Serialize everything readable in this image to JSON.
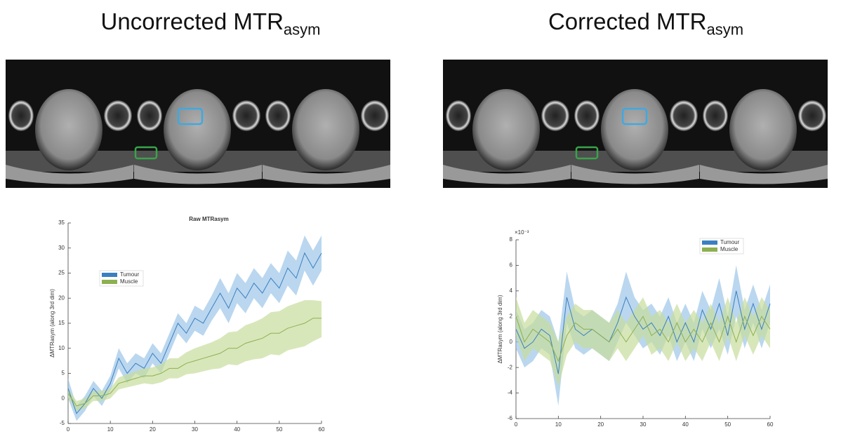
{
  "headings": [
    {
      "text": "Uncorrected MTR",
      "subscript": "asym"
    },
    {
      "text": "Corrected MTR",
      "subscript": "asym"
    }
  ],
  "chart_data": [
    {
      "type": "line",
      "title": "Raw MTRasym",
      "ylabel": "ΔMTRasym (along 3rd dim)",
      "x": [
        0,
        2,
        4,
        6,
        8,
        10,
        12,
        14,
        16,
        18,
        20,
        22,
        24,
        26,
        28,
        30,
        32,
        34,
        36,
        38,
        40,
        42,
        44,
        46,
        48,
        50,
        52,
        54,
        56,
        58,
        60
      ],
      "xlim": [
        0,
        60
      ],
      "xticks": [
        0,
        10,
        20,
        30,
        40,
        50,
        60
      ],
      "ylim": [
        -5,
        35
      ],
      "yticks": [
        -5,
        0,
        5,
        10,
        15,
        20,
        25,
        30,
        35
      ],
      "legend_position": "upper left",
      "series": [
        {
          "name": "Tumour",
          "color": "#3b7fc0",
          "band_color": "#9cc6e8",
          "values": [
            2,
            -3,
            -1,
            2,
            0,
            3,
            8,
            5,
            7,
            6,
            9,
            7,
            11,
            15,
            13,
            16,
            15,
            18,
            21,
            18,
            22,
            20,
            23,
            21,
            24,
            22,
            26,
            24,
            29,
            26,
            29
          ],
          "lower": [
            0,
            -4.5,
            -2.5,
            0.5,
            -1.5,
            1.5,
            6,
            3,
            5,
            4,
            7,
            5,
            9,
            13,
            11,
            13.5,
            12.5,
            15.5,
            18,
            15,
            19,
            17,
            20,
            18,
            21,
            19,
            22.5,
            20.5,
            25.5,
            22.5,
            25.5
          ],
          "upper": [
            4,
            -1.5,
            0.5,
            3.5,
            1.5,
            4.5,
            10,
            7,
            9,
            8,
            11,
            9,
            13,
            17,
            15,
            18.5,
            17.5,
            20.5,
            24,
            21,
            25,
            23,
            26,
            24,
            27,
            25,
            29.5,
            27.5,
            32.5,
            29.5,
            32.5
          ]
        },
        {
          "name": "Muscle",
          "color": "#8db050",
          "band_color": "#c8dd9c",
          "values": [
            1,
            -1.5,
            -1,
            0.5,
            0.5,
            1,
            3,
            3.5,
            4,
            4.5,
            4.5,
            5,
            6,
            6,
            7,
            7.5,
            8,
            8.5,
            9,
            10,
            10,
            11,
            11.5,
            12,
            13,
            13,
            14,
            14.5,
            15,
            16,
            16
          ],
          "lower": [
            0,
            -2.5,
            -2,
            -0.5,
            -0.5,
            0,
            1.8,
            2.2,
            2.6,
            3,
            2.8,
            3.2,
            4,
            4,
            4.8,
            5,
            5.4,
            5.8,
            6,
            6.8,
            6.6,
            7.4,
            7.8,
            8,
            8.8,
            8.6,
            9.6,
            10,
            10.4,
            11.4,
            12.2
          ],
          "upper": [
            2,
            -0.5,
            0,
            1.5,
            1.5,
            2,
            4.2,
            4.8,
            5.4,
            6,
            6.2,
            6.8,
            8,
            8,
            9.2,
            10,
            10.6,
            11.2,
            12,
            13.2,
            13.4,
            14.6,
            15.2,
            16,
            17.2,
            17.4,
            18.4,
            19,
            19.6,
            19.6,
            19.4
          ]
        }
      ]
    },
    {
      "type": "line",
      "ylabel": "ΔMTRasym (along 3rd dim)",
      "y_multiplier": "×10⁻³",
      "x": [
        0,
        2,
        4,
        6,
        8,
        10,
        12,
        14,
        16,
        18,
        20,
        22,
        24,
        26,
        28,
        30,
        32,
        34,
        36,
        38,
        40,
        42,
        44,
        46,
        48,
        50,
        52,
        54,
        56,
        58,
        60
      ],
      "xlim": [
        0,
        60
      ],
      "xticks": [
        0,
        10,
        20,
        30,
        40,
        50,
        60
      ],
      "ylim": [
        -6,
        8
      ],
      "yticks": [
        -6,
        -4,
        -2,
        0,
        2,
        4,
        6,
        8
      ],
      "legend_position": "upper right",
      "series": [
        {
          "name": "Tumour",
          "color": "#3b7fc0",
          "band_color": "#9cc6e8",
          "values": [
            1,
            -0.5,
            0,
            1,
            0.5,
            -2.5,
            3.5,
            1,
            0.5,
            1,
            0.5,
            0,
            1.5,
            3.5,
            2,
            1,
            1.5,
            0.5,
            2,
            0,
            1.5,
            0,
            2.5,
            1,
            3,
            0.5,
            4,
            1,
            3,
            1,
            3
          ],
          "lower": [
            -0.5,
            -2,
            -1.5,
            -0.5,
            -1,
            -5,
            1.5,
            -0.5,
            -1,
            -0.5,
            -1,
            -1.5,
            0,
            1.5,
            0.5,
            -0.5,
            0,
            -1,
            0.5,
            -1.5,
            0,
            -1.5,
            1,
            -0.5,
            1,
            -1,
            2,
            -0.5,
            1.5,
            -0.5,
            1.5
          ],
          "upper": [
            2.5,
            1,
            1.5,
            2.5,
            2,
            0,
            5.5,
            2.5,
            2,
            2.5,
            2,
            1.5,
            3,
            5.5,
            3.5,
            2.5,
            3,
            2,
            3.5,
            1.5,
            3,
            1.5,
            4,
            2.5,
            5,
            2,
            6,
            2.5,
            4.5,
            2.5,
            4.5
          ]
        },
        {
          "name": "Muscle",
          "color": "#8db050",
          "band_color": "#c8dd9c",
          "values": [
            2,
            0,
            1,
            0.5,
            0,
            -1.5,
            0.5,
            1.5,
            1,
            1,
            0.5,
            0,
            1,
            0,
            1,
            2,
            0.5,
            1,
            0,
            1.5,
            0,
            1,
            0,
            1.5,
            0,
            2,
            0,
            2,
            0.5,
            2,
            1
          ],
          "lower": [
            0.5,
            -1.5,
            -0.5,
            -1,
            -1.5,
            -3.5,
            -1,
            0,
            -0.5,
            -0.5,
            -1,
            -1.5,
            -0.5,
            -1.5,
            -0.5,
            0.5,
            -1,
            -0.5,
            -1.5,
            0,
            -1.5,
            -0.5,
            -1.5,
            0,
            -1.5,
            0.5,
            -1.5,
            0.5,
            -1,
            0.5,
            -0.5
          ],
          "upper": [
            3.5,
            1.5,
            2.5,
            2,
            1.5,
            0,
            2,
            3,
            2.5,
            2.5,
            2,
            1.5,
            2.5,
            1.5,
            2.5,
            3.5,
            2,
            2.5,
            1.5,
            3,
            1.5,
            2.5,
            1.5,
            3,
            1.5,
            3.5,
            1.5,
            3.5,
            2,
            3.5,
            2.5
          ]
        }
      ]
    }
  ]
}
